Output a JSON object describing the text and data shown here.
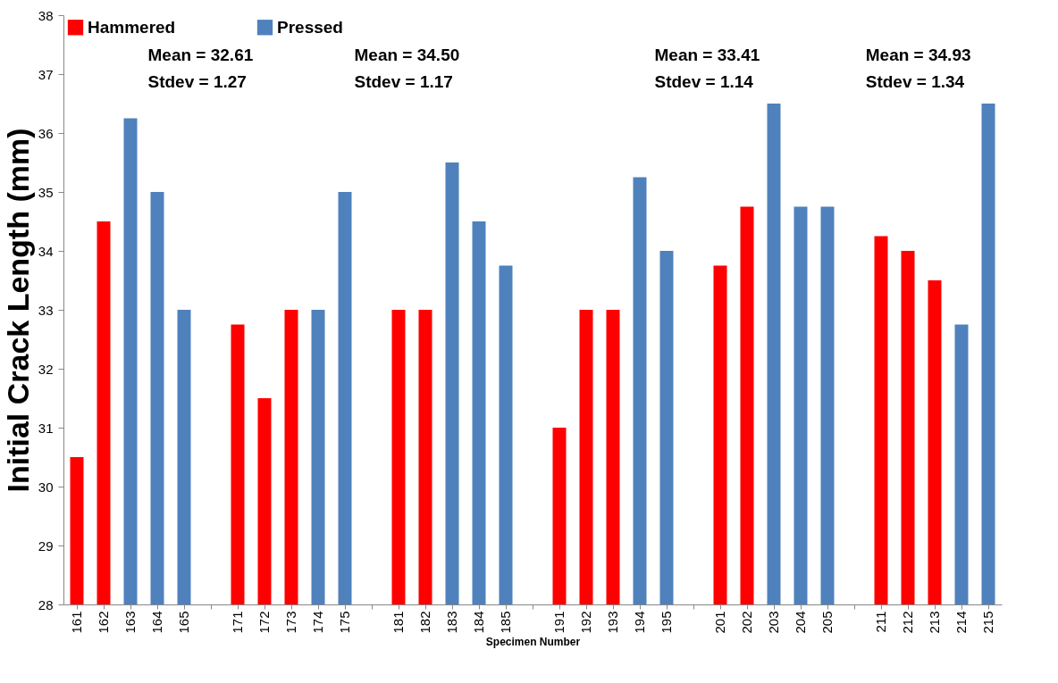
{
  "chart_data": {
    "type": "bar",
    "ylabel": "Initial Crack Length (mm)",
    "xlabel": "Specimen Number",
    "categories": [
      "161",
      "162",
      "163",
      "164",
      "165",
      null,
      "171",
      "172",
      "173",
      "174",
      "175",
      null,
      "181",
      "182",
      "183",
      "184",
      "185",
      null,
      "191",
      "192",
      "193",
      "194",
      "195",
      null,
      "201",
      "202",
      "203",
      "204",
      "205",
      null,
      "211",
      "212",
      "213",
      "214",
      "215"
    ],
    "series": [
      {
        "name": "Hammered",
        "color": "#ff0000",
        "values": [
          30.5,
          34.5,
          null,
          null,
          null,
          null,
          32.75,
          31.5,
          33,
          null,
          null,
          null,
          33,
          33,
          null,
          null,
          null,
          null,
          31,
          33,
          33,
          null,
          null,
          null,
          33.75,
          34.75,
          null,
          null,
          null,
          null,
          34.25,
          34,
          33.5,
          null,
          null
        ]
      },
      {
        "name": "Pressed",
        "color": "#4f81bd",
        "values": [
          null,
          null,
          36.25,
          35,
          33,
          null,
          null,
          null,
          null,
          33,
          35,
          null,
          null,
          null,
          35.5,
          34.5,
          33.75,
          null,
          null,
          null,
          null,
          35.25,
          34,
          null,
          null,
          null,
          36.5,
          34.75,
          34.75,
          null,
          null,
          null,
          null,
          32.75,
          36.5
        ]
      }
    ],
    "ylim": [
      28,
      38
    ],
    "yticks": [
      28,
      29,
      30,
      31,
      32,
      33,
      34,
      35,
      36,
      37,
      38
    ],
    "grid": false,
    "legend": "top left",
    "annotations": [
      "Mean = 32.61\nStdev = 1.27",
      "Mean = 34.50\nStdev = 1.17",
      "Mean = 33.41\nStdev = 1.14",
      "Mean = 34.93\nStdev = 1.34"
    ]
  }
}
